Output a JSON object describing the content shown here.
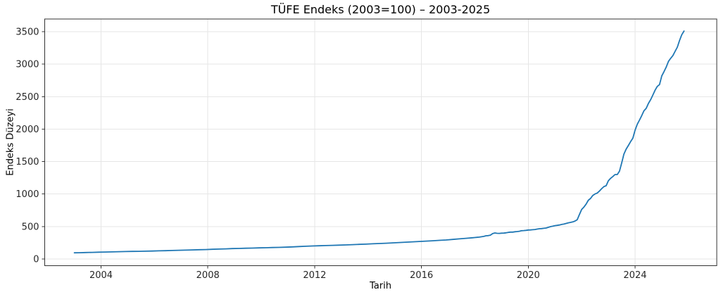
{
  "chart_data": {
    "type": "line",
    "title": "TÜFE Endeks (2003=100) – 2003-2025",
    "xlabel": "Tarih",
    "ylabel": "Endeks Düzeyi",
    "legend": "none",
    "grid": true,
    "grid_color": "#e6e6e6",
    "axis_color": "#333333",
    "tick_label_color": "#262626",
    "background": "#ffffff",
    "x_ticks": [
      2004,
      2008,
      2012,
      2016,
      2020,
      2024
    ],
    "y_ticks": [
      0,
      500,
      1000,
      1500,
      2000,
      2500,
      3000,
      3500
    ],
    "xlim": [
      2001.89,
      2027.06
    ],
    "ylim": [
      -103,
      3695
    ],
    "series": [
      {
        "name": "TÜFE Endeksi (2003=100)",
        "color": "#1f77b4",
        "x": [
          2003.0,
          2003.167,
          2003.417,
          2003.667,
          2003.917,
          2004.167,
          2004.417,
          2004.667,
          2004.917,
          2005.167,
          2005.417,
          2005.667,
          2005.917,
          2006.167,
          2006.417,
          2006.667,
          2006.917,
          2007.167,
          2007.417,
          2007.667,
          2007.917,
          2008.167,
          2008.417,
          2008.667,
          2008.917,
          2009.167,
          2009.417,
          2009.667,
          2009.917,
          2010.167,
          2010.417,
          2010.667,
          2010.917,
          2011.167,
          2011.417,
          2011.667,
          2011.917,
          2012.167,
          2012.417,
          2012.667,
          2012.917,
          2013.167,
          2013.417,
          2013.667,
          2013.917,
          2014.167,
          2014.417,
          2014.667,
          2014.917,
          2015.167,
          2015.417,
          2015.667,
          2015.917,
          2016.167,
          2016.417,
          2016.667,
          2016.917,
          2017.167,
          2017.417,
          2017.667,
          2017.917,
          2018.0,
          2018.083,
          2018.167,
          2018.25,
          2018.333,
          2018.417,
          2018.5,
          2018.583,
          2018.667,
          2018.75,
          2018.833,
          2018.917,
          2019.0,
          2019.083,
          2019.167,
          2019.25,
          2019.333,
          2019.417,
          2019.5,
          2019.583,
          2019.667,
          2019.75,
          2019.833,
          2019.917,
          2020.0,
          2020.083,
          2020.167,
          2020.25,
          2020.333,
          2020.417,
          2020.5,
          2020.583,
          2020.667,
          2020.75,
          2020.833,
          2020.917,
          2021.0,
          2021.083,
          2021.167,
          2021.25,
          2021.333,
          2021.417,
          2021.5,
          2021.583,
          2021.667,
          2021.75,
          2021.833,
          2021.917,
          2022.0,
          2022.083,
          2022.167,
          2022.25,
          2022.333,
          2022.417,
          2022.5,
          2022.583,
          2022.667,
          2022.75,
          2022.833,
          2022.917,
          2023.0,
          2023.083,
          2023.167,
          2023.25,
          2023.333,
          2023.417,
          2023.5,
          2023.583,
          2023.667,
          2023.75,
          2023.833,
          2023.917,
          2024.0,
          2024.083,
          2024.167,
          2024.25,
          2024.333,
          2024.417,
          2024.5,
          2024.583,
          2024.667,
          2024.75,
          2024.833,
          2024.917,
          2025.0,
          2025.083,
          2025.167,
          2025.25,
          2025.333,
          2025.417,
          2025.5,
          2025.583,
          2025.667,
          2025.75,
          2025.833
        ],
        "values": [
          95.0,
          96.7,
          99.3,
          102.0,
          104.8,
          107.2,
          109.6,
          112.1,
          114.6,
          116.5,
          118.4,
          120.3,
          122.3,
          125.2,
          128.1,
          131.1,
          134.2,
          136.9,
          139.7,
          142.6,
          145.5,
          149.1,
          152.8,
          156.5,
          160.4,
          163.0,
          165.6,
          168.2,
          170.9,
          173.6,
          176.3,
          179.1,
          181.9,
          186.5,
          191.2,
          196.0,
          200.9,
          203.9,
          207.0,
          210.1,
          213.2,
          217.1,
          221.0,
          225.0,
          229.0,
          233.5,
          238.1,
          242.9,
          247.7,
          253.0,
          258.4,
          263.9,
          269.5,
          275.1,
          280.8,
          286.6,
          292.5,
          300.9,
          309.5,
          318.4,
          327.4,
          330.7,
          333.2,
          336.5,
          342.8,
          348.3,
          357.4,
          359.4,
          367.6,
          390.8,
          401.2,
          395.4,
          393.9,
          398.1,
          398.7,
          402.8,
          409.6,
          413.5,
          413.7,
          419.3,
          422.9,
          427.1,
          435.6,
          437.3,
          440.5,
          446.5,
          448.0,
          450.6,
          454.4,
          460.6,
          465.8,
          468.5,
          472.5,
          477.1,
          487.3,
          498.5,
          504.8,
          513.3,
          518.0,
          523.6,
          532.4,
          537.1,
          547.5,
          557.4,
          563.6,
          570.7,
          584.3,
          604.8,
          687.0,
          763.2,
          799.9,
          843.6,
          904.8,
          931.7,
          977.9,
          1001.0,
          1015.6,
          1046.9,
          1084.0,
          1115.2,
          1128.4,
          1203.5,
          1241.4,
          1269.8,
          1300.2,
          1300.7,
          1351.7,
          1479.9,
          1614.5,
          1691.2,
          1749.2,
          1806.5,
          1859.5,
          1984.1,
          2074.0,
          2139.5,
          2207.6,
          2282.0,
          2319.4,
          2394.3,
          2453.4,
          2526.3,
          2599.0,
          2657.3,
          2684.6,
          2819.6,
          2883.6,
          2954.5,
          3043.2,
          3089.7,
          3132.1,
          3196.6,
          3261.8,
          3367.2,
          3453.0,
          3510.0
        ]
      }
    ]
  }
}
